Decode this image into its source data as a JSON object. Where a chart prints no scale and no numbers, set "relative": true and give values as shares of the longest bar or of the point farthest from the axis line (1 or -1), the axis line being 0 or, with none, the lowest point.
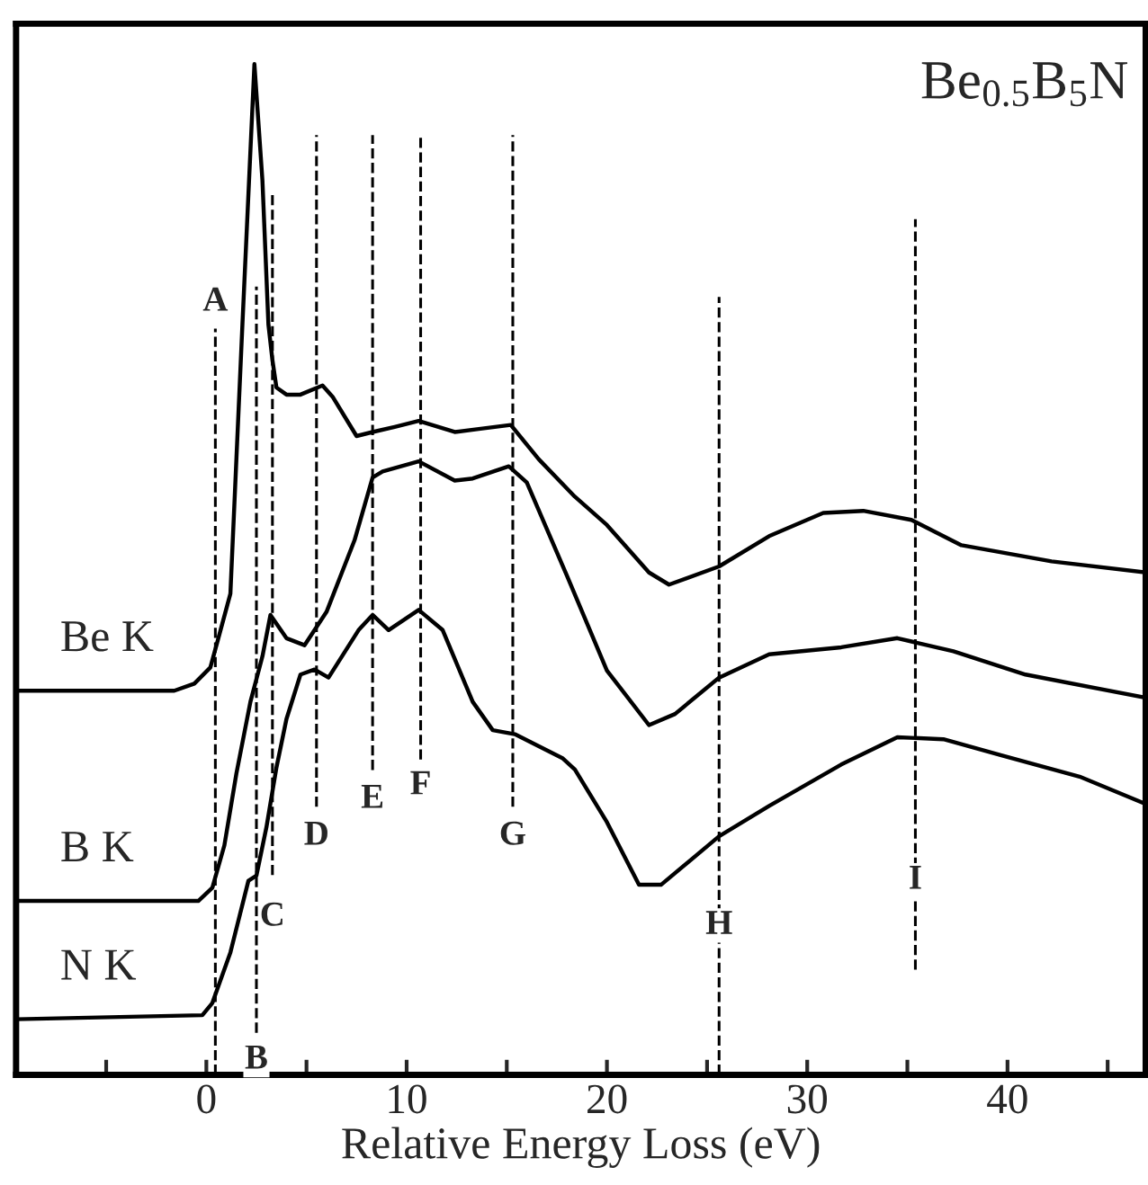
{
  "chart_data": {
    "type": "line",
    "title": "Be$_{0.5}$B$_{5}$N",
    "xlabel": "Relative Energy Loss (eV)",
    "relative": true,
    "xlim": [
      -9.5,
      46.9
    ],
    "xticks": [
      {
        "value": -5,
        "label": null
      },
      0,
      {
        "value": 5,
        "label": null
      },
      10,
      {
        "value": 15,
        "label": null
      },
      20,
      {
        "value": 25,
        "label": null
      },
      30,
      {
        "value": 35,
        "label": null
      },
      40,
      {
        "value": 45,
        "label": null
      }
    ],
    "tick_labels": "x",
    "grid": false,
    "legend": false,
    "marker": "none",
    "line_style": "solid",
    "series": [
      {
        "name": "Be K",
        "color": "#000000",
        "x": [
          -9.5,
          -1.6,
          -0.6,
          0.2,
          0.6,
          1.2,
          1.8,
          2.4,
          2.8,
          3.1,
          3.3,
          3.5,
          4.0,
          4.7,
          5.8,
          6.3,
          7.5,
          8.3,
          9.4,
          10.6,
          12.4,
          13.6,
          15.2,
          16.6,
          18.4,
          20.0,
          22.1,
          23.1,
          25.6,
          28.1,
          30.8,
          32.8,
          35.2,
          37.7,
          42.2,
          46.9
        ],
        "values": [
          0.38,
          0.38,
          0.387,
          0.403,
          0.432,
          0.476,
          0.742,
          1.0,
          0.885,
          0.742,
          0.707,
          0.68,
          0.673,
          0.673,
          0.682,
          0.671,
          0.632,
          0.636,
          0.641,
          0.647,
          0.636,
          0.639,
          0.643,
          0.609,
          0.572,
          0.544,
          0.497,
          0.485,
          0.503,
          0.533,
          0.556,
          0.558,
          0.549,
          0.524,
          0.508,
          0.497
        ]
      },
      {
        "name": "B K",
        "color": "#000000",
        "x": [
          -9.5,
          -0.4,
          0.3,
          0.9,
          1.5,
          2.2,
          2.8,
          3.2,
          4.0,
          4.9,
          6.0,
          7.4,
          8.3,
          8.8,
          10.6,
          12.4,
          13.3,
          15.1,
          16.0,
          18.0,
          20.0,
          22.1,
          23.4,
          25.6,
          28.1,
          31.7,
          34.5,
          37.3,
          40.9,
          46.9
        ],
        "values": [
          0.172,
          0.172,
          0.185,
          0.227,
          0.298,
          0.369,
          0.414,
          0.455,
          0.432,
          0.425,
          0.458,
          0.529,
          0.591,
          0.597,
          0.607,
          0.588,
          0.59,
          0.602,
          0.586,
          0.494,
          0.4,
          0.346,
          0.357,
          0.393,
          0.416,
          0.423,
          0.432,
          0.419,
          0.396,
          0.373
        ]
      },
      {
        "name": "N K",
        "color": "#000000",
        "x": [
          -9.5,
          -0.2,
          0.3,
          1.2,
          2.1,
          2.5,
          3.0,
          3.5,
          4.0,
          4.7,
          5.4,
          6.1,
          7.6,
          8.3,
          9.1,
          10.6,
          11.8,
          13.3,
          14.3,
          15.4,
          17.8,
          18.4,
          20.0,
          21.6,
          22.7,
          25.6,
          28.1,
          31.7,
          34.5,
          36.8,
          39.7,
          43.6,
          46.9
        ],
        "values": [
          0.055,
          0.059,
          0.071,
          0.121,
          0.192,
          0.197,
          0.245,
          0.304,
          0.352,
          0.396,
          0.401,
          0.393,
          0.44,
          0.455,
          0.44,
          0.46,
          0.44,
          0.369,
          0.341,
          0.337,
          0.313,
          0.302,
          0.25,
          0.188,
          0.188,
          0.236,
          0.266,
          0.307,
          0.334,
          0.332,
          0.316,
          0.295,
          0.268
        ]
      }
    ],
    "ref_lines": [
      {
        "axis": "x",
        "value": 0.45,
        "label": "A",
        "color": "#000000",
        "line_style": "dashed"
      },
      {
        "axis": "x",
        "value": 2.5,
        "label": "B",
        "color": "#000000",
        "line_style": "dashed"
      },
      {
        "axis": "x",
        "value": 3.3,
        "label": "C",
        "color": "#000000",
        "line_style": "dashed"
      },
      {
        "axis": "x",
        "value": 5.5,
        "label": "D",
        "color": "#000000",
        "line_style": "dashed"
      },
      {
        "axis": "x",
        "value": 8.3,
        "label": "E",
        "color": "#000000",
        "line_style": "dashed"
      },
      {
        "axis": "x",
        "value": 10.7,
        "label": "F",
        "color": "#000000",
        "line_style": "dashed"
      },
      {
        "axis": "x",
        "value": 15.3,
        "label": "G",
        "color": "#000000",
        "line_style": "dashed"
      },
      {
        "axis": "x",
        "value": 25.6,
        "label": "H",
        "color": "#000000",
        "line_style": "dashed"
      },
      {
        "axis": "x",
        "value": 35.4,
        "label": "I",
        "color": "#000000",
        "line_style": "dashed"
      }
    ]
  }
}
